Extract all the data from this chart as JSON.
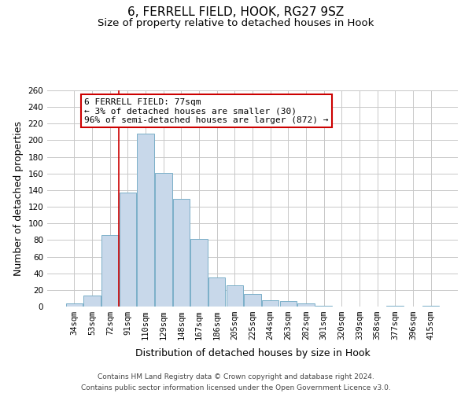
{
  "title": "6, FERRELL FIELD, HOOK, RG27 9SZ",
  "subtitle": "Size of property relative to detached houses in Hook",
  "xlabel": "Distribution of detached houses by size in Hook",
  "ylabel": "Number of detached properties",
  "bin_labels": [
    "34sqm",
    "53sqm",
    "72sqm",
    "91sqm",
    "110sqm",
    "129sqm",
    "148sqm",
    "167sqm",
    "186sqm",
    "205sqm",
    "225sqm",
    "244sqm",
    "263sqm",
    "282sqm",
    "301sqm",
    "320sqm",
    "339sqm",
    "358sqm",
    "377sqm",
    "396sqm",
    "415sqm"
  ],
  "bar_values": [
    4,
    13,
    86,
    137,
    208,
    161,
    130,
    81,
    35,
    26,
    15,
    8,
    7,
    4,
    1,
    0,
    0,
    0,
    1,
    0,
    1
  ],
  "bar_color": "#c8d8ea",
  "bar_edge_color": "#7aafc8",
  "bar_edge_width": 0.7,
  "vline_color": "#cc0000",
  "vline_x_index": 2.5,
  "annotation_box_text": "6 FERRELL FIELD: 77sqm\n← 3% of detached houses are smaller (30)\n96% of semi-detached houses are larger (872) →",
  "annotation_box_edge_color": "#cc0000",
  "ylim": [
    0,
    260
  ],
  "yticks": [
    0,
    20,
    40,
    60,
    80,
    100,
    120,
    140,
    160,
    180,
    200,
    220,
    240,
    260
  ],
  "grid_color": "#c8c8c8",
  "background_color": "#ffffff",
  "footer_line1": "Contains HM Land Registry data © Crown copyright and database right 2024.",
  "footer_line2": "Contains public sector information licensed under the Open Government Licence v3.0.",
  "title_fontsize": 11,
  "subtitle_fontsize": 9.5,
  "axis_label_fontsize": 9,
  "tick_fontsize": 7.5,
  "annotation_fontsize": 8,
  "footer_fontsize": 6.5
}
